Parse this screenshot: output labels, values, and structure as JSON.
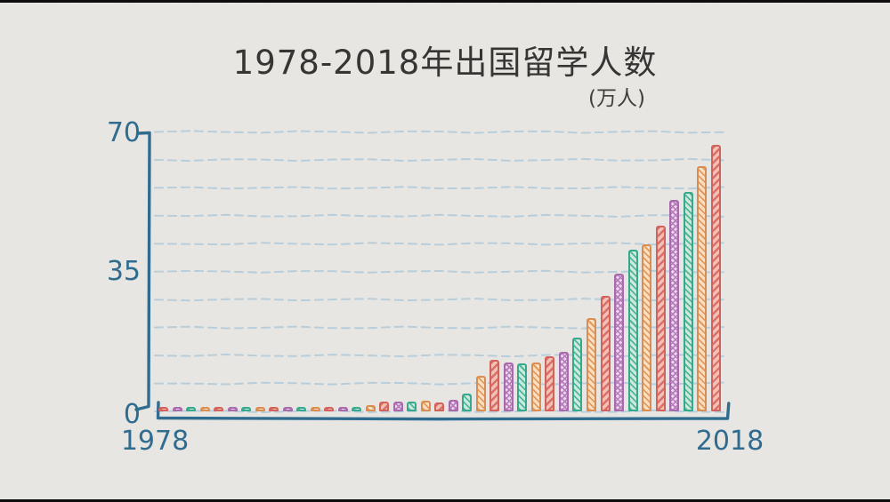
{
  "title": "1978-2018年出国留学人数",
  "subtitle": "(万人)",
  "labels": {
    "yticks": [
      "70",
      "35",
      "0"
    ],
    "xticks": [
      "1978",
      "2018"
    ]
  },
  "colors": {
    "background": "#e9e7e3",
    "letterbox": "#0d0d0d",
    "title_text": "#333230",
    "axis": "#2c6a8e",
    "tick_text": "#2c6a8e",
    "gridline": "#b7cedd"
  },
  "chart_data": {
    "type": "bar",
    "title": "1978-2018年出国留学人数",
    "unit": "万人",
    "ylim": [
      0,
      70
    ],
    "yticks": [
      0,
      35,
      70
    ],
    "xticks": [
      1978,
      2018
    ],
    "grid": "dashed-horizontal",
    "legend": "none",
    "style": "hand-drawn hatched bars, 4-color repeating cycle",
    "years": [
      1978,
      1979,
      1980,
      1981,
      1982,
      1983,
      1984,
      1985,
      1986,
      1987,
      1988,
      1989,
      1990,
      1991,
      1992,
      1993,
      1994,
      1995,
      1996,
      1997,
      1998,
      1999,
      2000,
      2001,
      2002,
      2003,
      2004,
      2005,
      2006,
      2007,
      2008,
      2009,
      2010,
      2011,
      2012,
      2013,
      2014,
      2015,
      2016,
      2017,
      2018
    ],
    "values": [
      0.09,
      0.18,
      0.21,
      0.29,
      0.23,
      0.26,
      0.31,
      0.49,
      0.47,
      0.47,
      0.38,
      0.33,
      0.3,
      0.29,
      0.65,
      1.07,
      1.91,
      2.04,
      2.09,
      2.24,
      1.76,
      2.37,
      3.9,
      8.4,
      12.52,
      11.73,
      11.47,
      11.85,
      13.4,
      14.4,
      17.98,
      22.93,
      28.47,
      33.97,
      39.96,
      41.39,
      45.98,
      52.37,
      54.45,
      60.84,
      66.21
    ],
    "palette": [
      {
        "name": "coral",
        "stroke": "#d2605a",
        "fill": "#f4c0b6",
        "hatch": "#db6e64",
        "dirs": [
          135
        ],
        "stripe_w": 2.4,
        "stripe_p": 6
      },
      {
        "name": "purple",
        "stroke": "#a768ab",
        "fill": "#ecd9ee",
        "hatch": "#b87abc",
        "dirs": [
          45,
          135
        ],
        "stripe_w": 1.6,
        "stripe_p": 4.5
      },
      {
        "name": "teal",
        "stroke": "#33a88b",
        "fill": "#cfeade",
        "hatch": "#4fb798",
        "dirs": [
          45
        ],
        "stripe_w": 1.8,
        "stripe_p": 5
      },
      {
        "name": "orange",
        "stroke": "#dc8c4e",
        "fill": "#f8e1c7",
        "hatch": "#e69a58",
        "dirs": [
          45
        ],
        "stripe_w": 1.8,
        "stripe_p": 5
      }
    ]
  }
}
